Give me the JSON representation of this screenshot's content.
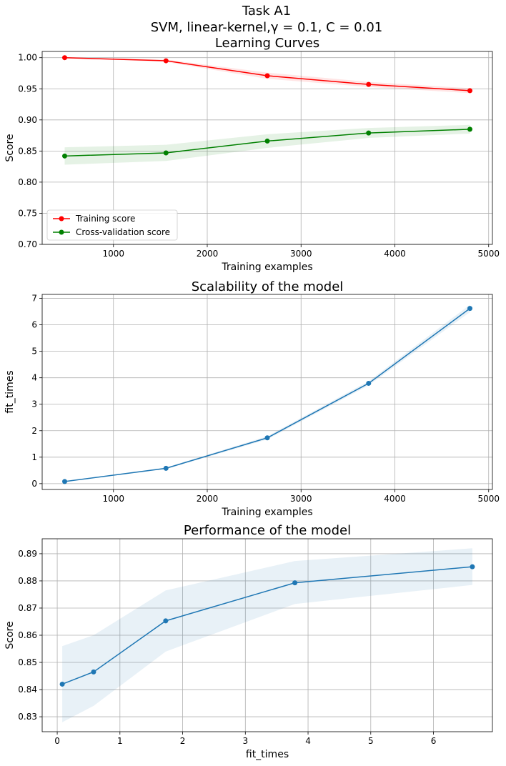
{
  "figure": {
    "title_lines": [
      "Task A1",
      "SVM, linear-kernel,γ = 0.1, C = 0.01"
    ]
  },
  "chart_data": [
    {
      "type": "line",
      "title": "Learning Curves",
      "xlabel": "Training examples",
      "ylabel": "Score",
      "xlim": [
        240,
        5040
      ],
      "ylim": [
        0.7,
        1.01
      ],
      "xticks": [
        1000,
        2000,
        3000,
        4000,
        5000
      ],
      "xtick_labels": [
        "1000",
        "2000",
        "3000",
        "4000",
        "5000"
      ],
      "yticks": [
        0.7,
        0.75,
        0.8,
        0.85,
        0.9,
        0.95,
        1.0
      ],
      "ytick_labels": [
        "0.70",
        "0.75",
        "0.80",
        "0.85",
        "0.90",
        "0.95",
        "1.00"
      ],
      "grid": true,
      "legend_position": "lower-left",
      "x": [
        480,
        1560,
        2640,
        3720,
        4800
      ],
      "series": [
        {
          "name": "Training score",
          "color": "#ff0000",
          "values": [
            1.0,
            0.995,
            0.971,
            0.957,
            0.947
          ],
          "band_lower": [
            1.0,
            0.993,
            0.966,
            0.953,
            0.943
          ],
          "band_upper": [
            1.0,
            0.997,
            0.976,
            0.961,
            0.951
          ]
        },
        {
          "name": "Cross-validation score",
          "color": "#008000",
          "values": [
            0.842,
            0.847,
            0.866,
            0.879,
            0.885
          ],
          "band_lower": [
            0.828,
            0.834,
            0.855,
            0.871,
            0.878
          ],
          "band_upper": [
            0.856,
            0.86,
            0.877,
            0.887,
            0.892
          ]
        }
      ]
    },
    {
      "type": "line",
      "title": "Scalability of the model",
      "xlabel": "Training examples",
      "ylabel": "fit_times",
      "xlim": [
        240,
        5040
      ],
      "ylim": [
        -0.22,
        7.15
      ],
      "xticks": [
        1000,
        2000,
        3000,
        4000,
        5000
      ],
      "xtick_labels": [
        "1000",
        "2000",
        "3000",
        "4000",
        "5000"
      ],
      "yticks": [
        0,
        1,
        2,
        3,
        4,
        5,
        6,
        7
      ],
      "ytick_labels": [
        "0",
        "1",
        "2",
        "3",
        "4",
        "5",
        "6",
        "7"
      ],
      "grid": true,
      "x": [
        480,
        1560,
        2640,
        3720,
        4800
      ],
      "series": [
        {
          "color": "#1f77b4",
          "values": [
            0.08,
            0.58,
            1.73,
            3.79,
            6.62
          ],
          "band_lower": [
            0.07,
            0.55,
            1.67,
            3.71,
            6.48
          ],
          "band_upper": [
            0.09,
            0.61,
            1.79,
            3.87,
            6.76
          ]
        }
      ]
    },
    {
      "type": "line",
      "title": "Performance of the model",
      "xlabel": "fit_times",
      "ylabel": "Score",
      "xlim": [
        -0.24,
        6.94
      ],
      "ylim": [
        0.8245,
        0.8955
      ],
      "xticks": [
        0,
        1,
        2,
        3,
        4,
        5,
        6
      ],
      "xtick_labels": [
        "0",
        "1",
        "2",
        "3",
        "4",
        "5",
        "6"
      ],
      "yticks": [
        0.83,
        0.84,
        0.85,
        0.86,
        0.87,
        0.88,
        0.89
      ],
      "ytick_labels": [
        "0.83",
        "0.84",
        "0.85",
        "0.86",
        "0.87",
        "0.88",
        "0.89"
      ],
      "grid": true,
      "x": [
        0.08,
        0.58,
        1.73,
        3.79,
        6.62
      ],
      "series": [
        {
          "color": "#1f77b4",
          "values": [
            0.842,
            0.8465,
            0.8653,
            0.8793,
            0.8852
          ],
          "band_lower": [
            0.828,
            0.834,
            0.854,
            0.8715,
            0.8785
          ],
          "band_upper": [
            0.856,
            0.86,
            0.8765,
            0.8873,
            0.892
          ]
        }
      ]
    }
  ]
}
